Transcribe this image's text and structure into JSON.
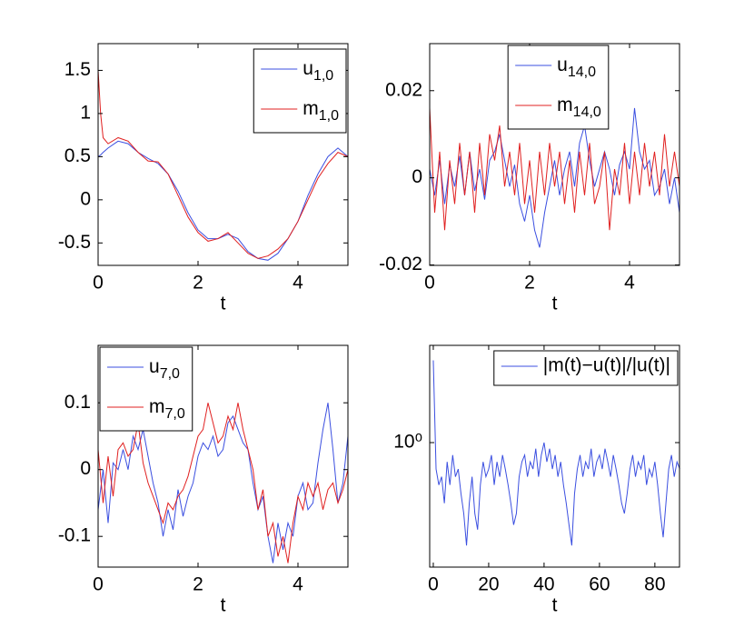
{
  "chart_data": [
    {
      "type": "line",
      "xlabel": "t",
      "x": [
        0,
        0.05,
        0.1,
        0.2,
        0.4,
        0.6,
        0.8,
        1.0,
        1.2,
        1.4,
        1.6,
        1.8,
        2.0,
        2.2,
        2.4,
        2.6,
        2.8,
        3.0,
        3.2,
        3.4,
        3.6,
        3.8,
        4.0,
        4.2,
        4.4,
        4.6,
        4.8,
        5.0
      ],
      "series": [
        {
          "name": "u1,0",
          "color": "#3b4fe0",
          "values": [
            0.5,
            0.52,
            0.55,
            0.6,
            0.68,
            0.65,
            0.55,
            0.48,
            0.42,
            0.3,
            0.1,
            -0.15,
            -0.35,
            -0.45,
            -0.45,
            -0.4,
            -0.45,
            -0.6,
            -0.68,
            -0.7,
            -0.62,
            -0.45,
            -0.25,
            0.05,
            0.3,
            0.5,
            0.6,
            0.5
          ]
        },
        {
          "name": "m1,0",
          "color": "#e02020",
          "values": [
            1.5,
            1.0,
            0.72,
            0.65,
            0.72,
            0.68,
            0.55,
            0.45,
            0.44,
            0.3,
            0.05,
            -0.2,
            -0.38,
            -0.48,
            -0.45,
            -0.38,
            -0.5,
            -0.62,
            -0.68,
            -0.65,
            -0.57,
            -0.45,
            -0.25,
            0.0,
            0.25,
            0.42,
            0.55,
            0.5
          ]
        }
      ],
      "xlim": [
        0,
        5
      ],
      "xticks": [
        0,
        2,
        4
      ],
      "ylim": [
        -0.76,
        1.81
      ],
      "yticks": [
        -0.5,
        0,
        0.5,
        1,
        1.5
      ],
      "legend": "upper right"
    },
    {
      "type": "line",
      "xlabel": "t",
      "x": [
        0,
        0.1,
        0.2,
        0.3,
        0.4,
        0.5,
        0.6,
        0.7,
        0.8,
        0.9,
        1.0,
        1.1,
        1.2,
        1.3,
        1.4,
        1.5,
        1.6,
        1.7,
        1.8,
        1.9,
        2.0,
        2.1,
        2.2,
        2.3,
        2.4,
        2.5,
        2.6,
        2.7,
        2.8,
        2.9,
        3.0,
        3.1,
        3.2,
        3.3,
        3.4,
        3.5,
        3.6,
        3.7,
        3.8,
        3.9,
        4.0,
        4.1,
        4.2,
        4.3,
        4.4,
        4.5,
        4.6,
        4.7,
        4.8,
        4.9,
        5.0
      ],
      "series": [
        {
          "name": "u14,0",
          "color": "#3b4fe0",
          "values": [
            0.002,
            -0.004,
            0.004,
            -0.006,
            0.003,
            -0.002,
            0.005,
            -0.004,
            0.006,
            -0.003,
            0.002,
            -0.005,
            0.004,
            0.006,
            0.01,
            0.004,
            -0.002,
            0.003,
            -0.006,
            -0.01,
            -0.004,
            -0.012,
            -0.016,
            -0.008,
            -0.002,
            0.004,
            -0.004,
            0.002,
            0.006,
            -0.002,
            0.008,
            0.012,
            0.004,
            -0.002,
            0.002,
            0.006,
            0.002,
            -0.004,
            0.003,
            0.006,
            0.002,
            0.016,
            0.006,
            0.002,
            0.004,
            -0.004,
            -0.002,
            0.002,
            -0.006,
            0.0,
            -0.008
          ]
        },
        {
          "name": "m14,0",
          "color": "#e02020",
          "values": [
            0.016,
            -0.008,
            0.006,
            -0.012,
            0.004,
            -0.006,
            0.008,
            -0.004,
            0.006,
            -0.008,
            0.008,
            -0.004,
            0.01,
            0.004,
            0.012,
            -0.002,
            0.006,
            -0.004,
            0.008,
            -0.006,
            0.004,
            -0.008,
            0.006,
            -0.004,
            0.008,
            -0.002,
            0.006,
            -0.006,
            0.004,
            -0.008,
            0.006,
            -0.004,
            0.008,
            -0.006,
            -0.002,
            0.006,
            -0.012,
            0.002,
            -0.004,
            0.008,
            -0.006,
            0.006,
            -0.004,
            0.008,
            -0.002,
            0.006,
            -0.004,
            0.01,
            -0.002,
            0.006,
            -0.002
          ]
        }
      ],
      "xlim": [
        0,
        5
      ],
      "xticks": [
        0,
        2,
        4
      ],
      "ylim": [
        -0.0201,
        0.0308
      ],
      "yticks": [
        -0.02,
        0,
        0.02
      ],
      "legend": "upper center"
    },
    {
      "type": "line",
      "xlabel": "t",
      "x": [
        0,
        0.1,
        0.2,
        0.3,
        0.4,
        0.5,
        0.6,
        0.7,
        0.8,
        0.9,
        1.0,
        1.1,
        1.2,
        1.3,
        1.4,
        1.5,
        1.6,
        1.7,
        1.8,
        1.9,
        2.0,
        2.1,
        2.2,
        2.3,
        2.4,
        2.5,
        2.6,
        2.7,
        2.8,
        2.9,
        3.0,
        3.1,
        3.2,
        3.3,
        3.4,
        3.5,
        3.6,
        3.7,
        3.8,
        3.9,
        4.0,
        4.1,
        4.2,
        4.3,
        4.4,
        4.5,
        4.6,
        4.7,
        4.8,
        4.9,
        5.0
      ],
      "series": [
        {
          "name": "u7,0",
          "color": "#3b4fe0",
          "values": [
            -0.06,
            0.0,
            -0.08,
            0.01,
            0.0,
            0.03,
            0.0,
            0.05,
            0.03,
            0.06,
            0.02,
            -0.02,
            -0.05,
            -0.1,
            -0.06,
            -0.09,
            -0.03,
            -0.07,
            -0.04,
            -0.02,
            0.02,
            0.04,
            0.03,
            0.05,
            0.02,
            0.03,
            0.07,
            0.08,
            0.06,
            0.04,
            0.03,
            -0.02,
            -0.06,
            -0.04,
            -0.1,
            -0.14,
            -0.08,
            -0.12,
            -0.08,
            -0.1,
            -0.04,
            -0.02,
            -0.06,
            -0.05,
            0.01,
            0.06,
            0.1,
            0.03,
            -0.05,
            -0.02,
            0.05
          ]
        },
        {
          "name": "m7,0",
          "color": "#e02020",
          "values": [
            0.03,
            -0.05,
            0.02,
            -0.04,
            0.03,
            0.04,
            0.02,
            0.03,
            0.07,
            0.01,
            -0.02,
            -0.04,
            -0.06,
            -0.08,
            -0.05,
            -0.06,
            -0.04,
            -0.03,
            -0.01,
            0.02,
            0.05,
            0.06,
            0.1,
            0.07,
            0.04,
            0.05,
            0.08,
            0.06,
            0.1,
            0.06,
            0.03,
            0.0,
            -0.06,
            -0.03,
            -0.1,
            -0.08,
            -0.13,
            -0.1,
            -0.14,
            -0.08,
            -0.04,
            -0.06,
            -0.02,
            -0.04,
            -0.02,
            -0.06,
            -0.03,
            -0.02,
            -0.05,
            -0.03,
            0.0
          ]
        }
      ],
      "xlim": [
        0,
        5
      ],
      "xticks": [
        0,
        2,
        4
      ],
      "ylim": [
        -0.146,
        0.186
      ],
      "yticks": [
        -0.1,
        0,
        0.1
      ],
      "legend": "upper left"
    },
    {
      "type": "line",
      "xlabel": "t",
      "ylog": true,
      "x": [
        0,
        1,
        2,
        3,
        4,
        5,
        6,
        7,
        8,
        9,
        10,
        11,
        12,
        13,
        14,
        15,
        16,
        17,
        18,
        19,
        20,
        21,
        22,
        23,
        24,
        25,
        26,
        27,
        28,
        29,
        30,
        31,
        32,
        33,
        34,
        35,
        36,
        37,
        38,
        39,
        40,
        41,
        42,
        43,
        44,
        45,
        46,
        47,
        48,
        49,
        50,
        51,
        52,
        53,
        54,
        55,
        56,
        57,
        58,
        59,
        60,
        61,
        62,
        63,
        64,
        65,
        66,
        67,
        68,
        69,
        70,
        71,
        72,
        73,
        74,
        75,
        76,
        77,
        78,
        79,
        80,
        81,
        82,
        83,
        84,
        85,
        86,
        87,
        88,
        89
      ],
      "series": [
        {
          "name": "|m(t)−u(t)|/|u(t)|",
          "color": "#3b4fe0",
          "values": [
            2.0,
            0.8,
            0.7,
            0.75,
            0.6,
            0.85,
            0.7,
            0.9,
            0.75,
            0.8,
            0.65,
            0.55,
            0.42,
            0.6,
            0.75,
            0.55,
            0.48,
            0.7,
            0.85,
            0.75,
            0.8,
            0.9,
            0.7,
            0.85,
            0.75,
            0.9,
            0.8,
            0.7,
            0.6,
            0.5,
            0.55,
            0.75,
            0.85,
            0.9,
            0.75,
            0.85,
            0.8,
            0.95,
            0.75,
            0.9,
            1.0,
            0.85,
            0.95,
            0.8,
            0.9,
            0.75,
            0.85,
            0.7,
            0.6,
            0.5,
            0.42,
            0.65,
            0.8,
            0.9,
            0.75,
            0.85,
            0.8,
            0.95,
            0.75,
            0.85,
            0.9,
            0.8,
            0.95,
            0.85,
            0.75,
            0.9,
            0.8,
            0.7,
            0.6,
            0.55,
            0.65,
            0.8,
            0.9,
            0.75,
            0.85,
            0.8,
            0.9,
            0.7,
            0.8,
            0.75,
            0.85,
            0.7,
            0.55,
            0.45,
            0.6,
            0.8,
            0.9,
            0.75,
            0.85,
            0.8
          ]
        }
      ],
      "xlim": [
        -1.3,
        88.9
      ],
      "xticks": [
        0,
        20,
        40,
        60,
        80
      ],
      "ylim": [
        0.35,
        2.27
      ],
      "yticks": [
        {
          "value": 1,
          "label": "10⁰"
        }
      ],
      "legend": "upper right"
    }
  ]
}
